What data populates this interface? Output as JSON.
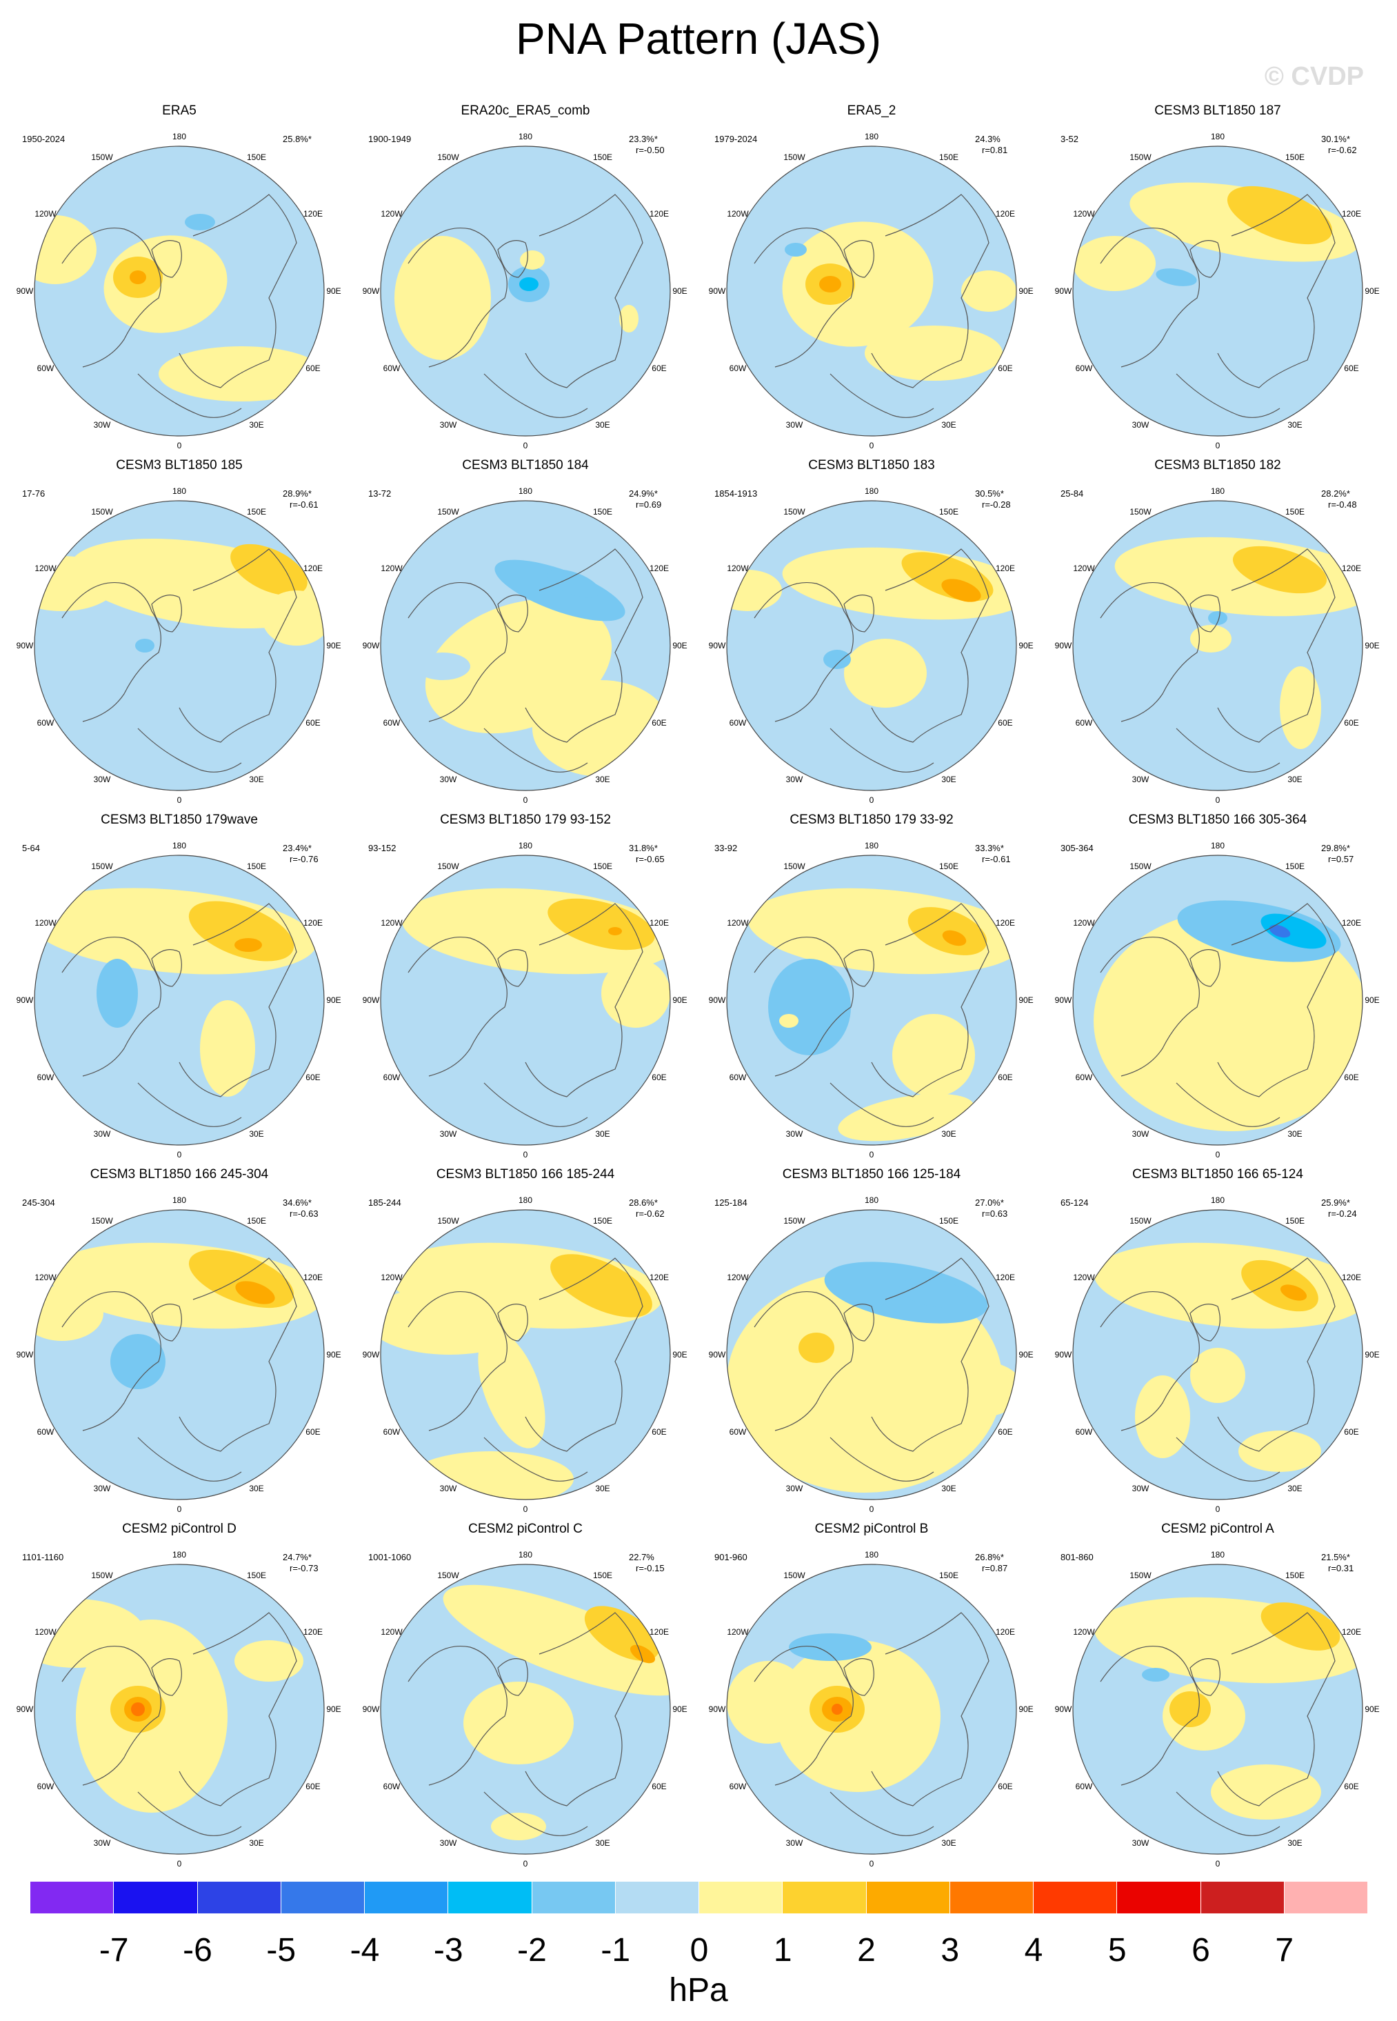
{
  "figure": {
    "title": "PNA Pattern (JAS)",
    "watermark": "© CVDP"
  },
  "lon_labels": [
    "180",
    "150E",
    "120E",
    "90E",
    "60E",
    "30E",
    "0",
    "30W",
    "60W",
    "90W",
    "120W",
    "150W"
  ],
  "colorbar": {
    "units": "hPa",
    "ticks": [
      "-7",
      "-6",
      "-5",
      "-4",
      "-3",
      "-2",
      "-1",
      "0",
      "1",
      "2",
      "3",
      "4",
      "5",
      "6",
      "7"
    ],
    "colors": [
      "#8229f2",
      "#1a12f0",
      "#2d43e6",
      "#3578ea",
      "#209af5",
      "#00bdf5",
      "#77c8f2",
      "#b4dcf3",
      "#fff59a",
      "#fdd22f",
      "#fdaa00",
      "#ff7800",
      "#ff3a00",
      "#ea0300",
      "#cd1f1f",
      "#ffb1b1"
    ]
  },
  "panels": [
    {
      "title": "ERA5",
      "period": "1950-2024",
      "pct": "25.8%*",
      "r": ""
    },
    {
      "title": "ERA20c_ERA5_comb",
      "period": "1900-1949",
      "pct": "23.3%*",
      "r": "r=-0.50"
    },
    {
      "title": "ERA5_2",
      "period": "1979-2024",
      "pct": "24.3%",
      "r": "r=0.81"
    },
    {
      "title": "CESM3 BLT1850 187",
      "period": "3-52",
      "pct": "30.1%*",
      "r": "r=-0.62"
    },
    {
      "title": "CESM3 BLT1850 185",
      "period": "17-76",
      "pct": "28.9%*",
      "r": "r=-0.61"
    },
    {
      "title": "CESM3 BLT1850 184",
      "period": "13-72",
      "pct": "24.9%*",
      "r": "r=0.69"
    },
    {
      "title": "CESM3 BLT1850 183",
      "period": "1854-1913",
      "pct": "30.5%*",
      "r": "r=-0.28"
    },
    {
      "title": "CESM3 BLT1850 182",
      "period": "25-84",
      "pct": "28.2%*",
      "r": "r=-0.48"
    },
    {
      "title": "CESM3 BLT1850 179wave",
      "period": "5-64",
      "pct": "23.4%*",
      "r": "r=-0.76"
    },
    {
      "title": "CESM3 BLT1850 179 93-152",
      "period": "93-152",
      "pct": "31.8%*",
      "r": "r=-0.65"
    },
    {
      "title": "CESM3 BLT1850 179 33-92",
      "period": "33-92",
      "pct": "33.3%*",
      "r": "r=-0.61"
    },
    {
      "title": "CESM3 BLT1850 166 305-364",
      "period": "305-364",
      "pct": "29.8%*",
      "r": "r=0.57"
    },
    {
      "title": "CESM3 BLT1850 166 245-304",
      "period": "245-304",
      "pct": "34.6%*",
      "r": "r=-0.63"
    },
    {
      "title": "CESM3 BLT1850 166 185-244",
      "period": "185-244",
      "pct": "28.6%*",
      "r": "r=-0.62"
    },
    {
      "title": "CESM3 BLT1850 166 125-184",
      "period": "125-184",
      "pct": "27.0%*",
      "r": "r=0.63"
    },
    {
      "title": "CESM3 BLT1850 166 65-124",
      "period": "65-124",
      "pct": "25.9%*",
      "r": "r=-0.24"
    },
    {
      "title": "CESM2 piControl D",
      "period": "1101-1160",
      "pct": "24.7%*",
      "r": "r=-0.73"
    },
    {
      "title": "CESM2 piControl C",
      "period": "1001-1060",
      "pct": "22.7%",
      "r": "r=-0.15"
    },
    {
      "title": "CESM2 piControl B",
      "period": "901-960",
      "pct": "26.8%*",
      "r": "r=0.87"
    },
    {
      "title": "CESM2 piControl A",
      "period": "801-860",
      "pct": "21.5%*",
      "r": "r=0.31"
    }
  ]
}
